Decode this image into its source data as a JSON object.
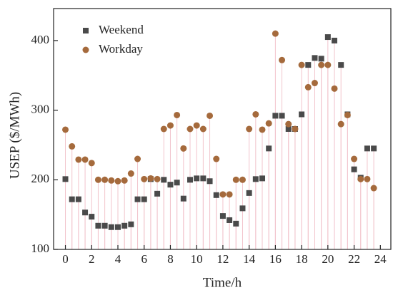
{
  "chart_data": {
    "type": "stem-scatter",
    "x_label": "Time/h",
    "y_label": "USEP ($/MWh)",
    "x": [
      0,
      0.5,
      1,
      1.5,
      2,
      2.5,
      3,
      3.5,
      4,
      4.5,
      5,
      5.5,
      6,
      6.5,
      7,
      7.5,
      8,
      8.5,
      9,
      9.5,
      10,
      10.5,
      11,
      11.5,
      12,
      12.5,
      13,
      13.5,
      14,
      14.5,
      15,
      15.5,
      16,
      16.5,
      17,
      17.5,
      18,
      18.5,
      19,
      19.5,
      20,
      20.5,
      21,
      21.5,
      22,
      22.5,
      23,
      23.5
    ],
    "series": [
      {
        "name": "Weekend",
        "color": "#4a4a4a",
        "marker": "square",
        "values": [
          201,
          172,
          172,
          153,
          147,
          134,
          134,
          132,
          132,
          134,
          136,
          172,
          172,
          201,
          180,
          200,
          193,
          196,
          173,
          200,
          202,
          202,
          198,
          178,
          148,
          142,
          137,
          159,
          181,
          201,
          202,
          245,
          292,
          292,
          273,
          273,
          294,
          365,
          375,
          374,
          405,
          400,
          365,
          294,
          215,
          203,
          245,
          245
        ]
      },
      {
        "name": "Workday",
        "color": "#a56a3c",
        "marker": "circle",
        "values": [
          272,
          248,
          229,
          229,
          224,
          200,
          200,
          199,
          198,
          199,
          209,
          230,
          201,
          202,
          201,
          273,
          278,
          293,
          245,
          273,
          278,
          273,
          292,
          230,
          179,
          179,
          200,
          200,
          273,
          294,
          272,
          281,
          410,
          372,
          280,
          273,
          365,
          333,
          339,
          365,
          365,
          331,
          280,
          293,
          230,
          201,
          201,
          188
        ]
      }
    ],
    "stem_color": "#f2c4cc",
    "xlim": [
      -0.9,
      24.8
    ],
    "ylim": [
      100,
      446
    ],
    "xticks": [
      0,
      2,
      4,
      6,
      8,
      10,
      12,
      14,
      16,
      18,
      20,
      22,
      24
    ],
    "yticks": [
      100,
      200,
      300,
      400
    ],
    "legend": "upper left"
  }
}
